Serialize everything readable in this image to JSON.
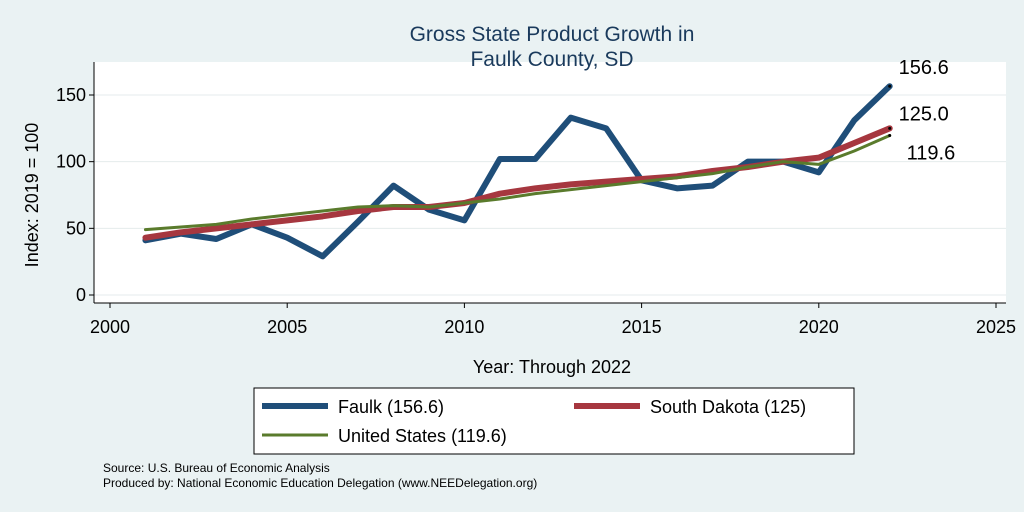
{
  "chart_data": {
    "type": "line",
    "title": [
      "Gross State Product Growth in",
      "Faulk County, SD"
    ],
    "xlabel": "Year: Through 2022",
    "ylabel": "Index: 2019 = 100",
    "xlim": [
      2000,
      2025
    ],
    "ylim": [
      -10,
      165
    ],
    "xticks": [
      2000,
      2005,
      2010,
      2015,
      2020,
      2025
    ],
    "yticks": [
      0,
      50,
      100,
      150
    ],
    "x": [
      2001,
      2002,
      2003,
      2004,
      2005,
      2006,
      2007,
      2008,
      2009,
      2010,
      2011,
      2012,
      2013,
      2014,
      2015,
      2016,
      2017,
      2018,
      2019,
      2020,
      2021,
      2022
    ],
    "series": [
      {
        "name": "Faulk",
        "legend": "Faulk  (156.6)",
        "color": "#1f4e79",
        "end_label": "156.6",
        "values": [
          41,
          46,
          42,
          53,
          43,
          29,
          55,
          82,
          64,
          56,
          102,
          102,
          133,
          125,
          86,
          80,
          82,
          100,
          100,
          92,
          131,
          156.6
        ]
      },
      {
        "name": "South Dakota",
        "legend": "South Dakota (125)",
        "color": "#a6373f",
        "end_label": "125.0",
        "values": [
          43,
          47,
          50,
          53,
          56,
          59,
          63,
          66,
          66,
          69,
          76,
          80,
          83,
          85,
          87,
          89,
          93,
          96,
          100,
          103,
          114,
          125
        ]
      },
      {
        "name": "United States",
        "legend": "United States (119.6)",
        "color": "#5a7b2c",
        "end_label": "119.6",
        "values": [
          49,
          51,
          53,
          57,
          60,
          63,
          66,
          67,
          66,
          69,
          72,
          76,
          79,
          82,
          85,
          88,
          91,
          96,
          100,
          98,
          108,
          119.6
        ]
      }
    ]
  },
  "source_lines": [
    "Source: U.S. Bureau of Economic Analysis",
    "Produced by: National Economic Education Delegation (www.NEEDelegation.org)"
  ]
}
